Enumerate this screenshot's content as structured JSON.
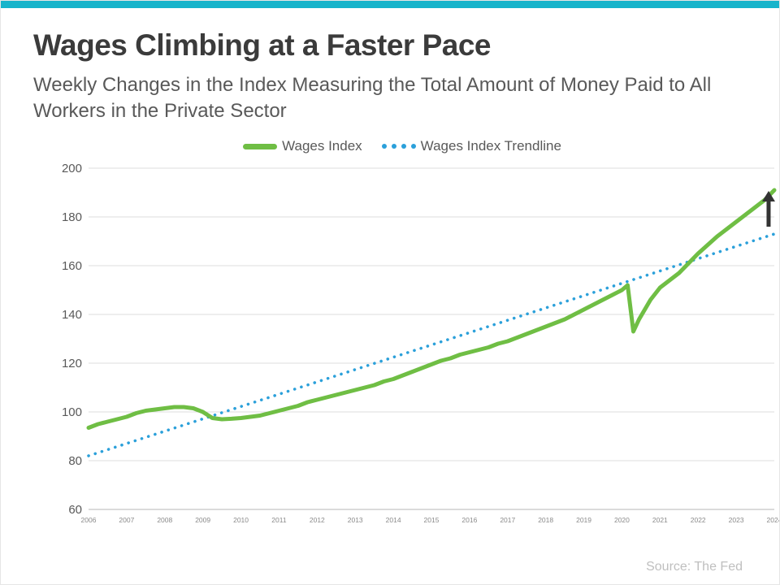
{
  "theme": {
    "accent_bar_color": "#17b4cb",
    "title_color": "#3b3b3b",
    "subtitle_color": "#595959",
    "grid_color": "#dcdcdc",
    "axis_color": "#b7b7b7",
    "tick_label_color": "#8a8a8a",
    "ytick_label_color": "#595959"
  },
  "header": {
    "title": "Wages Climbing at a Faster Pace",
    "subtitle": "Weekly Changes in the Index Measuring the Total Amount of Money Paid to All Workers in the Private Sector"
  },
  "legend": {
    "items": [
      {
        "label": "Wages Index",
        "swatch": "line",
        "color": "#6fbe44"
      },
      {
        "label": "Wages Index Trendline",
        "swatch": "dots",
        "color": "#2ba0da"
      }
    ]
  },
  "footer": {
    "source": "Source: The Fed"
  },
  "chart_data": {
    "type": "line",
    "title": "Wages Climbing at a Faster Pace",
    "xlabel": "",
    "ylabel": "",
    "xlim": [
      2006,
      2024
    ],
    "ylim": [
      60,
      200
    ],
    "ytick": 20,
    "x_ticks": [
      2006,
      2007,
      2008,
      2009,
      2010,
      2011,
      2012,
      2013,
      2014,
      2015,
      2016,
      2017,
      2018,
      2019,
      2020,
      2021,
      2022,
      2023,
      2024
    ],
    "grid": true,
    "legend_position": "top-center",
    "series": [
      {
        "name": "Wages Index",
        "color": "#6fbe44",
        "style": "solid",
        "points": [
          [
            2006.0,
            93.5
          ],
          [
            2006.25,
            95
          ],
          [
            2006.5,
            96
          ],
          [
            2006.75,
            97
          ],
          [
            2007.0,
            98
          ],
          [
            2007.25,
            99.5
          ],
          [
            2007.5,
            100.5
          ],
          [
            2007.75,
            101
          ],
          [
            2008.0,
            101.5
          ],
          [
            2008.25,
            102
          ],
          [
            2008.5,
            102
          ],
          [
            2008.75,
            101.5
          ],
          [
            2009.0,
            100
          ],
          [
            2009.25,
            97.5
          ],
          [
            2009.5,
            97
          ],
          [
            2009.75,
            97.2
          ],
          [
            2010.0,
            97.5
          ],
          [
            2010.25,
            98
          ],
          [
            2010.5,
            98.5
          ],
          [
            2010.75,
            99.5
          ],
          [
            2011.0,
            100.5
          ],
          [
            2011.25,
            101.5
          ],
          [
            2011.5,
            102.5
          ],
          [
            2011.75,
            104
          ],
          [
            2012.0,
            105
          ],
          [
            2012.25,
            106
          ],
          [
            2012.5,
            107
          ],
          [
            2012.75,
            108
          ],
          [
            2013.0,
            109
          ],
          [
            2013.25,
            110
          ],
          [
            2013.5,
            111
          ],
          [
            2013.75,
            112.5
          ],
          [
            2014.0,
            113.5
          ],
          [
            2014.25,
            115
          ],
          [
            2014.5,
            116.5
          ],
          [
            2014.75,
            118
          ],
          [
            2015.0,
            119.5
          ],
          [
            2015.25,
            121
          ],
          [
            2015.5,
            122
          ],
          [
            2015.75,
            123.5
          ],
          [
            2016.0,
            124.5
          ],
          [
            2016.25,
            125.5
          ],
          [
            2016.5,
            126.5
          ],
          [
            2016.75,
            128
          ],
          [
            2017.0,
            129
          ],
          [
            2017.25,
            130.5
          ],
          [
            2017.5,
            132
          ],
          [
            2017.75,
            133.5
          ],
          [
            2018.0,
            135
          ],
          [
            2018.25,
            136.5
          ],
          [
            2018.5,
            138
          ],
          [
            2018.75,
            140
          ],
          [
            2019.0,
            142
          ],
          [
            2019.25,
            144
          ],
          [
            2019.5,
            146
          ],
          [
            2019.75,
            148
          ],
          [
            2020.0,
            150
          ],
          [
            2020.15,
            152
          ],
          [
            2020.3,
            133
          ],
          [
            2020.45,
            138
          ],
          [
            2020.6,
            142
          ],
          [
            2020.75,
            146
          ],
          [
            2021.0,
            151
          ],
          [
            2021.25,
            154
          ],
          [
            2021.5,
            157
          ],
          [
            2021.75,
            161
          ],
          [
            2022.0,
            165
          ],
          [
            2022.25,
            168.5
          ],
          [
            2022.5,
            172
          ],
          [
            2022.75,
            175
          ],
          [
            2023.0,
            178
          ],
          [
            2023.25,
            181
          ],
          [
            2023.5,
            184
          ],
          [
            2023.75,
            187
          ],
          [
            2024.0,
            191
          ]
        ]
      },
      {
        "name": "Wages Index Trendline",
        "color": "#2ba0da",
        "style": "dotted",
        "points": [
          [
            2006,
            82
          ],
          [
            2024,
            173
          ]
        ]
      }
    ],
    "annotation": {
      "type": "arrow-up",
      "x": 2023.85,
      "y_start": 176,
      "y_end": 190,
      "color": "#333333"
    }
  }
}
